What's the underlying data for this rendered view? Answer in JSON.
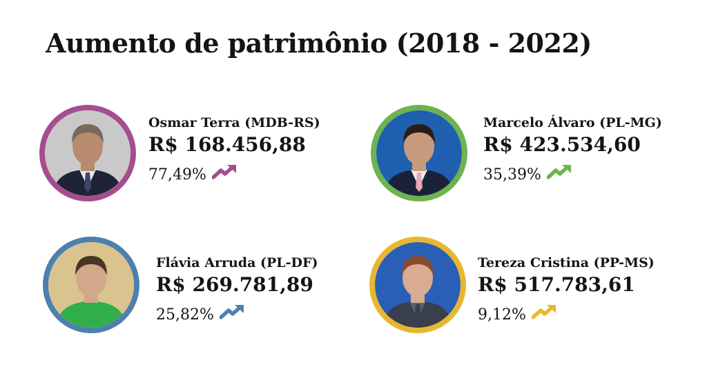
{
  "title": "Aumento de patrimônio (2018 - 2022)",
  "people": [
    {
      "name": "Osmar Terra (MDB-RS)",
      "amount": "R$ 168.456,88",
      "change": "77,49%",
      "ring_color": "#a34e8e",
      "arrow_color": "#a34e8e",
      "photo_bg": "#c9c9c9",
      "skin": "#b88a70",
      "hair": "#7a6a5c",
      "suit": "#1e2436",
      "shirt": "#e8e8ee",
      "tie": "#3c4670"
    },
    {
      "name": "Marcelo Álvaro (PL-MG)",
      "amount": "R$ 423.534,60",
      "change": "35,39%",
      "ring_color": "#6db34f",
      "arrow_color": "#6db34f",
      "photo_bg": "#1f5fb0",
      "skin": "#c79a7e",
      "hair": "#2a1d17",
      "suit": "#1a2238",
      "shirt": "#f1ecec",
      "tie": "#e6a9b4"
    },
    {
      "name": "Flávia Arruda (PL-DF)",
      "amount": "R$ 269.781,89",
      "change": "25,82%",
      "ring_color": "#4c80ad",
      "arrow_color": "#4c80ad",
      "photo_bg": "#d9c38e",
      "skin": "#d2a88a",
      "hair": "#4a3422",
      "suit": "#2fae4a",
      "shirt": "#2fae4a",
      "tie": "#2fae4a"
    },
    {
      "name": "Tereza Cristina (PP-MS)",
      "amount": "R$ 517.783,61",
      "change": "9,12%",
      "ring_color": "#e8b730",
      "arrow_color": "#e8b730",
      "photo_bg": "#2a5fb8",
      "skin": "#d8ab92",
      "hair": "#8a4a2e",
      "suit": "#3a3f4e",
      "shirt": "#5a6070",
      "tie": "#3a3f4e"
    }
  ]
}
